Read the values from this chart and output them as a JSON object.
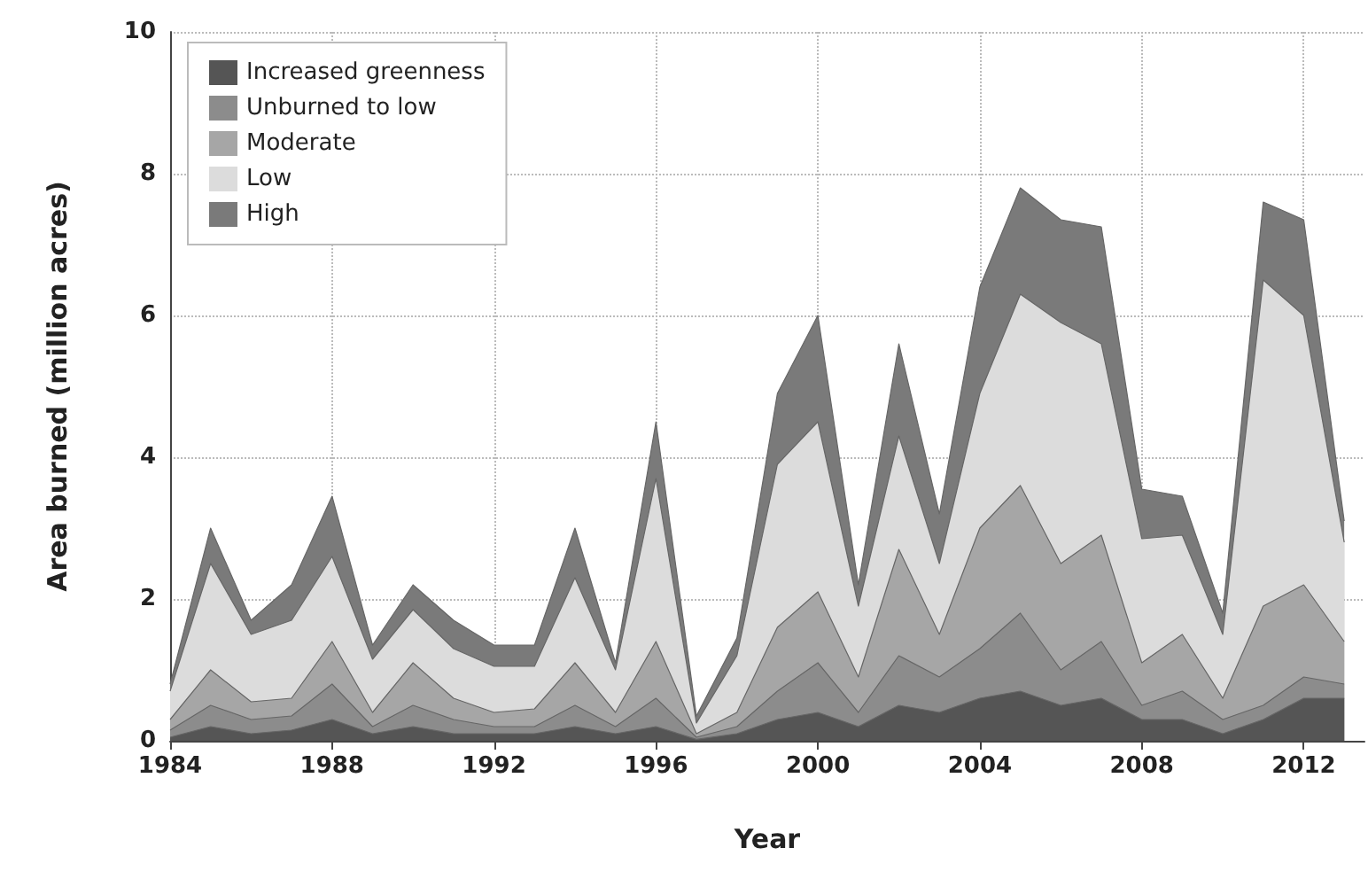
{
  "chart_data": {
    "type": "area",
    "stacked": true,
    "xlabel": "Year",
    "ylabel": "Area burned (million acres)",
    "x": [
      1984,
      1985,
      1986,
      1987,
      1988,
      1989,
      1990,
      1991,
      1992,
      1993,
      1994,
      1995,
      1996,
      1997,
      1998,
      1999,
      2000,
      2001,
      2002,
      2003,
      2004,
      2005,
      2006,
      2007,
      2008,
      2009,
      2010,
      2011,
      2012,
      2013
    ],
    "xlim": [
      1984,
      2013.5
    ],
    "xticks": [
      1984,
      1988,
      1992,
      1996,
      2000,
      2004,
      2008,
      2012
    ],
    "ylim": [
      0,
      10
    ],
    "yticks": [
      0,
      2,
      4,
      6,
      8,
      10
    ],
    "grid": true,
    "legend": "top left",
    "series": [
      {
        "name": "Increased greenness",
        "color": "#555555",
        "values": [
          0.05,
          0.2,
          0.1,
          0.15,
          0.3,
          0.1,
          0.2,
          0.1,
          0.1,
          0.1,
          0.2,
          0.1,
          0.2,
          0.02,
          0.1,
          0.3,
          0.4,
          0.2,
          0.5,
          0.4,
          0.6,
          0.7,
          0.5,
          0.6,
          0.3,
          0.3,
          0.1,
          0.3,
          0.6,
          0.6
        ]
      },
      {
        "name": "Unburned to low",
        "color": "#8c8c8c",
        "values": [
          0.1,
          0.3,
          0.2,
          0.2,
          0.5,
          0.1,
          0.3,
          0.2,
          0.1,
          0.1,
          0.3,
          0.1,
          0.4,
          0.03,
          0.1,
          0.4,
          0.7,
          0.2,
          0.7,
          0.5,
          0.7,
          1.1,
          0.5,
          0.8,
          0.2,
          0.4,
          0.2,
          0.2,
          0.3,
          0.2
        ]
      },
      {
        "name": "Moderate",
        "color": "#a6a6a6",
        "values": [
          0.15,
          0.5,
          0.25,
          0.25,
          0.6,
          0.2,
          0.6,
          0.3,
          0.2,
          0.25,
          0.6,
          0.2,
          0.8,
          0.05,
          0.2,
          0.9,
          1.0,
          0.5,
          1.5,
          0.6,
          1.7,
          1.8,
          1.5,
          1.5,
          0.6,
          0.8,
          0.3,
          1.4,
          1.3,
          0.6
        ]
      },
      {
        "name": "Low",
        "color": "#dcdcdc",
        "values": [
          0.4,
          1.5,
          0.95,
          1.1,
          1.2,
          0.75,
          0.75,
          0.7,
          0.65,
          0.6,
          1.2,
          0.6,
          2.3,
          0.15,
          0.8,
          2.3,
          2.4,
          1.0,
          1.6,
          1.0,
          1.9,
          2.7,
          3.4,
          2.7,
          1.75,
          1.4,
          0.9,
          4.6,
          3.8,
          1.4
        ]
      },
      {
        "name": "High",
        "color": "#7a7a7a",
        "values": [
          0.1,
          0.5,
          0.2,
          0.5,
          0.85,
          0.2,
          0.35,
          0.4,
          0.3,
          0.3,
          0.7,
          0.1,
          0.8,
          0.1,
          0.25,
          1.0,
          1.5,
          0.3,
          1.3,
          0.7,
          1.5,
          1.5,
          1.45,
          1.65,
          0.7,
          0.55,
          0.3,
          1.1,
          1.35,
          0.3
        ]
      }
    ]
  }
}
